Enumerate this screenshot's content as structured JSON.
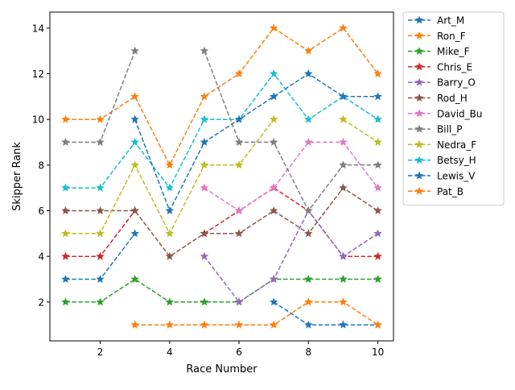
{
  "chart_data": {
    "type": "line",
    "title": "",
    "xlabel": "Race Number",
    "ylabel": "Skipper Rank",
    "xlim": [
      0.55,
      10.45
    ],
    "ylim": [
      0.3,
      14.7
    ],
    "xticks": [
      2,
      4,
      6,
      8,
      10
    ],
    "yticks": [
      2,
      4,
      6,
      8,
      10,
      12,
      14
    ],
    "grid": false,
    "legend_placement": "outside-top-right",
    "x": [
      1,
      2,
      3,
      4,
      5,
      6,
      7,
      8,
      9,
      10
    ],
    "series": [
      {
        "name": "Art_M",
        "color": "#1f77b4",
        "values": [
          3,
          3,
          5,
          null,
          null,
          null,
          2,
          1,
          1,
          1
        ]
      },
      {
        "name": "Ron_F",
        "color": "#ff7f0e",
        "values": [
          10,
          10,
          11,
          8,
          11,
          12,
          14,
          13,
          14,
          12
        ]
      },
      {
        "name": "Mike_F",
        "color": "#2ca02c",
        "values": [
          2,
          2,
          3,
          2,
          2,
          2,
          3,
          3,
          3,
          3
        ]
      },
      {
        "name": "Chris_E",
        "color": "#d62728",
        "values": [
          4,
          4,
          6,
          null,
          5,
          6,
          7,
          6,
          4,
          4
        ]
      },
      {
        "name": "Barry_O",
        "color": "#9467bd",
        "values": [
          null,
          null,
          null,
          null,
          4,
          2,
          3,
          6,
          4,
          5
        ]
      },
      {
        "name": "Rod_H",
        "color": "#8c564b",
        "values": [
          6,
          6,
          6,
          4,
          5,
          5,
          6,
          5,
          7,
          6
        ]
      },
      {
        "name": "David_Bu",
        "color": "#e377c2",
        "values": [
          null,
          null,
          null,
          null,
          7,
          6,
          7,
          9,
          9,
          7
        ]
      },
      {
        "name": "Bill_P",
        "color": "#7f7f7f",
        "values": [
          9,
          9,
          13,
          null,
          13,
          9,
          9,
          6,
          8,
          8
        ]
      },
      {
        "name": "Nedra_F",
        "color": "#bcbd22",
        "values": [
          5,
          5,
          8,
          5,
          8,
          8,
          10,
          null,
          10,
          9
        ]
      },
      {
        "name": "Betsy_H",
        "color": "#17becf",
        "values": [
          7,
          7,
          9,
          7,
          10,
          10,
          12,
          10,
          11,
          10
        ]
      },
      {
        "name": "Lewis_V",
        "color": "#1f77b4",
        "values": [
          null,
          null,
          10,
          6,
          9,
          10,
          11,
          12,
          11,
          11
        ]
      },
      {
        "name": "Pat_B",
        "color": "#ff7f0e",
        "values": [
          null,
          null,
          1,
          1,
          1,
          1,
          1,
          2,
          2,
          1
        ]
      }
    ]
  }
}
